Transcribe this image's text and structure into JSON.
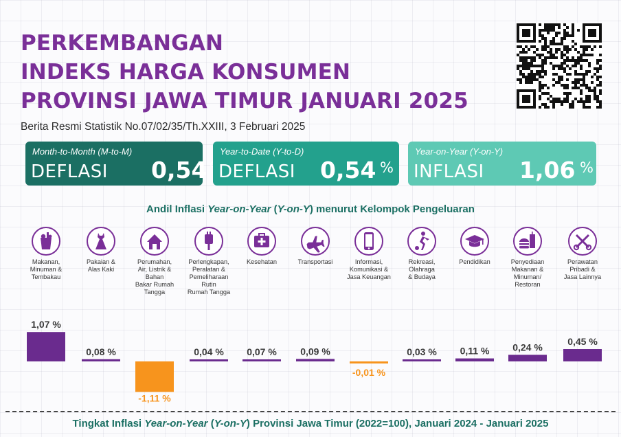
{
  "header": {
    "title_lines": [
      "PERKEMBANGAN",
      "INDEKS HARGA KONSUMEN",
      "PROVINSI JAWA TIMUR JANUARI 2025"
    ],
    "subtitle": "Berita Resmi Statistik No.07/02/35/Th.XXIII, 3 Februari 2025"
  },
  "cards": [
    {
      "kind": "Month-to-Month (M-to-M)",
      "label": "DEFLASI",
      "value": "0,54",
      "unit": "%"
    },
    {
      "kind": "Year-to-Date (Y-to-D)",
      "label": "DEFLASI",
      "value": "0,54",
      "unit": "%"
    },
    {
      "kind": "Year-on-Year (Y-on-Y)",
      "label": "INFLASI",
      "value": "1,06",
      "unit": "%"
    }
  ],
  "section": {
    "title_pre": "Andil Inflasi ",
    "title_em1": "Year-on-Year",
    "title_mid": " (",
    "title_em2": "Y-on-Y",
    "title_post": ") menurut Kelompok Pengeluaran"
  },
  "categories": [
    {
      "icon": "food-bag-icon",
      "lines": [
        "Makanan,",
        "Minuman &",
        "Tembakau"
      ]
    },
    {
      "icon": "dress-icon",
      "lines": [
        "Pakaian &",
        "Alas Kaki"
      ]
    },
    {
      "icon": "house-icon",
      "lines": [
        "Perumahan,",
        "Air, Listrik &",
        "Bahan",
        "Bakar Rumah",
        "Tangga"
      ]
    },
    {
      "icon": "plug-icon",
      "lines": [
        "Perlengkapan,",
        "Peralatan &",
        "Pemeliharaan",
        "Rutin",
        "Rumah Tangga"
      ]
    },
    {
      "icon": "medical-kit-icon",
      "lines": [
        "Kesehatan"
      ]
    },
    {
      "icon": "airplane-icon",
      "lines": [
        "Transportasi"
      ]
    },
    {
      "icon": "smartphone-icon",
      "lines": [
        "Informasi,",
        "Komunikasi &",
        "Jasa Keuangan"
      ]
    },
    {
      "icon": "soccer-player-icon",
      "lines": [
        "Rekreasi,",
        "Olahraga",
        "& Budaya"
      ]
    },
    {
      "icon": "graduation-cap-icon",
      "lines": [
        "Pendidikan"
      ]
    },
    {
      "icon": "burger-drink-icon",
      "lines": [
        "Penyediaan",
        "Makanan &",
        "Minuman/",
        "Restoran"
      ]
    },
    {
      "icon": "scissors-comb-icon",
      "lines": [
        "Perawatan",
        "Pribadi &",
        "Jasa Lainnya"
      ]
    }
  ],
  "chart_data": {
    "type": "bar",
    "categories": [
      "Makanan, Minuman & Tembakau",
      "Pakaian & Alas Kaki",
      "Perumahan, Air, Listrik & Bahan Bakar Rumah Tangga",
      "Perlengkapan, Peralatan & Pemeliharaan Rutin Rumah Tangga",
      "Kesehatan",
      "Transportasi",
      "Informasi, Komunikasi & Jasa Keuangan",
      "Rekreasi, Olahraga & Budaya",
      "Pendidikan",
      "Penyediaan Makanan & Minuman/ Restoran",
      "Perawatan Pribadi & Jasa Lainnya"
    ],
    "values": [
      1.07,
      0.08,
      -1.11,
      0.04,
      0.07,
      0.09,
      -0.01,
      0.03,
      0.11,
      0.24,
      0.45
    ],
    "value_labels": [
      "1,07 %",
      "0,08 %",
      "-1,11 %",
      "0,04 %",
      "0,07 %",
      "0,09 %",
      "-0,01 %",
      "0,03 %",
      "0,11 %",
      "0,24 %",
      "0,45 %"
    ],
    "positive_color": "#6a2b8e",
    "negative_color": "#f7941d"
  },
  "footer": {
    "pre": "Tingkat Inflasi ",
    "em1": "Year-on-Year",
    "mid": " (",
    "em2": "Y-on-Y",
    "post": ") Provinsi Jawa Timur (2022=100), Januari 2024 - Januari 2025"
  },
  "colors": {
    "title": "#7a2f98",
    "card_1": "#1b6f63",
    "card_2": "#23a18d",
    "card_3": "#5ec9b4",
    "section_title": "#1b6f63"
  }
}
